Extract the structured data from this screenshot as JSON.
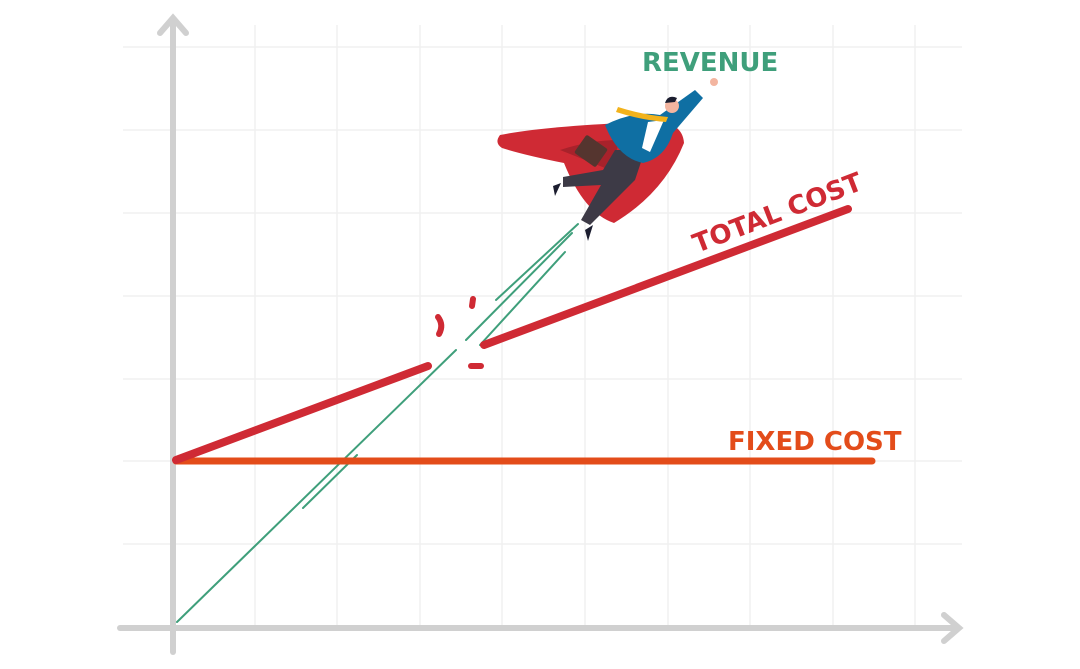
{
  "labels": {
    "revenue": "REVENUE",
    "total_cost": "TOTAL COST",
    "fixed_cost": "FIXED COST"
  },
  "colors": {
    "revenue": "#3f9f7b",
    "total_cost": "#cf2a34",
    "fixed_cost": "#e34c1a",
    "axis": "#d0d0d0",
    "grid": "#f0f0f0",
    "cape": "#cf2a34",
    "suit": "#0f6fa3",
    "tie": "#f2b21b"
  },
  "illustration": "flying-businessman-superhero"
}
